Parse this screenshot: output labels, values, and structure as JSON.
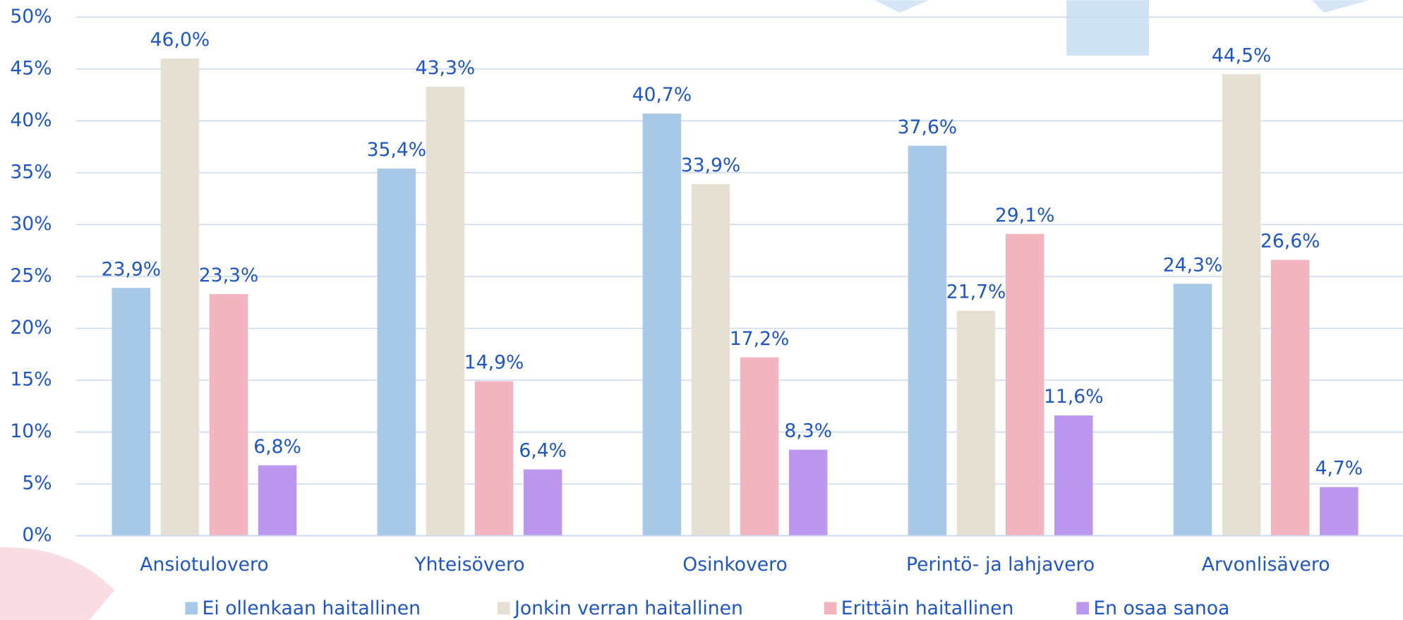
{
  "chart_data": {
    "type": "bar",
    "categories": [
      "Ansiotulovero",
      "Yhteisövero",
      "Osinkovero",
      "Perintö- ja lahjavero",
      "Arvonlisävero"
    ],
    "series": [
      {
        "name": "Ei ollenkaan haitallinen",
        "color": "#a8c8e8",
        "values": [
          23.9,
          35.4,
          40.7,
          37.6,
          24.3
        ],
        "value_labels": [
          "23,9%",
          "35,4%",
          "40,7%",
          "37,6%",
          "24,3%"
        ]
      },
      {
        "name": "Jonkin verran haitallinen",
        "color": "#e6e0d3",
        "values": [
          46.0,
          43.3,
          33.9,
          21.7,
          44.5
        ],
        "value_labels": [
          "46,0%",
          "43,3%",
          "33,9%",
          "21,7%",
          "44,5%"
        ]
      },
      {
        "name": "Erittäin haitallinen",
        "color": "#f2b4be",
        "values": [
          23.3,
          14.9,
          17.2,
          29.1,
          26.6
        ],
        "value_labels": [
          "23,3%",
          "14,9%",
          "17,2%",
          "29,1%",
          "26,6%"
        ]
      },
      {
        "name": "En osaa sanoa",
        "color": "#bb97ee",
        "values": [
          6.8,
          6.4,
          8.3,
          11.6,
          4.7
        ],
        "value_labels": [
          "6,8%",
          "6,4%",
          "8,3%",
          "11,6%",
          "4,7%"
        ]
      }
    ],
    "ylim": [
      0,
      50
    ],
    "yticks": [
      {
        "value": 0,
        "label": "0%"
      },
      {
        "value": 5,
        "label": "5%"
      },
      {
        "value": 10,
        "label": "10%"
      },
      {
        "value": 15,
        "label": "15%"
      },
      {
        "value": 20,
        "label": "20%"
      },
      {
        "value": 25,
        "label": "25%"
      },
      {
        "value": 30,
        "label": "30%"
      },
      {
        "value": 35,
        "label": "35%"
      },
      {
        "value": 40,
        "label": "40%"
      },
      {
        "value": 45,
        "label": "45%"
      },
      {
        "value": 50,
        "label": "50%"
      }
    ],
    "grid": true,
    "legend": "bottom"
  }
}
